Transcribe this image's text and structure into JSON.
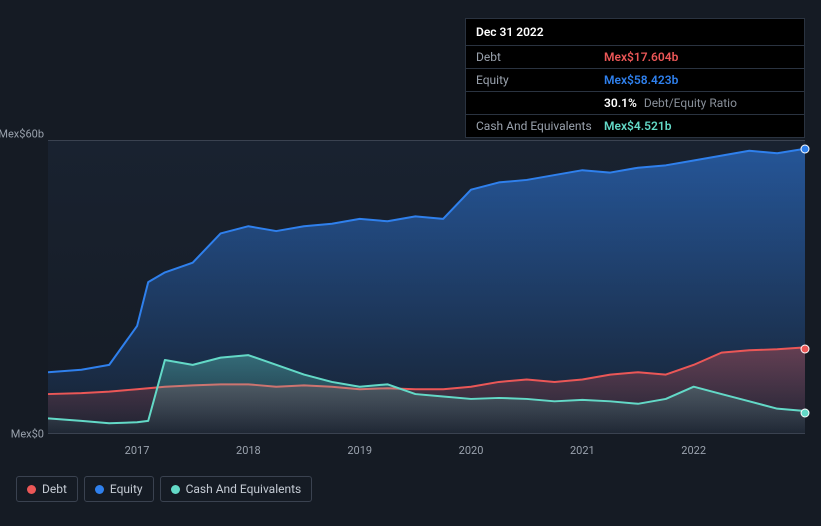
{
  "tooltip": {
    "date": "Dec 31 2022",
    "rows": [
      {
        "label": "Debt",
        "value": "Mex$17.604b",
        "color": "#eb5757"
      },
      {
        "label": "Equity",
        "value": "Mex$58.423b",
        "color": "#2f80ed"
      },
      {
        "label": "",
        "value": "30.1%",
        "sub": "Debt/Equity Ratio",
        "color": "#ffffff"
      },
      {
        "label": "Cash And Equivalents",
        "value": "Mex$4.521b",
        "color": "#63d9c7"
      }
    ]
  },
  "chart": {
    "type": "area",
    "background_top": "#192230",
    "background_bottom": "#151b24",
    "grid_border_color": "#3a4250",
    "y_axis": {
      "max": 60,
      "min": 0,
      "labels": [
        {
          "text": "Mex$60b",
          "value": 60
        },
        {
          "text": "Mex$0",
          "value": 0
        }
      ]
    },
    "x_axis": {
      "min": 2016.2,
      "max": 2023.0,
      "labels": [
        {
          "text": "2017",
          "value": 2017
        },
        {
          "text": "2018",
          "value": 2018
        },
        {
          "text": "2019",
          "value": 2019
        },
        {
          "text": "2020",
          "value": 2020
        },
        {
          "text": "2021",
          "value": 2021
        },
        {
          "text": "2022",
          "value": 2022
        }
      ]
    },
    "series": [
      {
        "name": "Equity",
        "stroke": "#2f80ed",
        "fill_top": "rgba(47,128,237,0.55)",
        "fill_bottom": "rgba(47,128,237,0.05)",
        "stroke_width": 2,
        "points": [
          [
            2016.2,
            12.5
          ],
          [
            2016.5,
            13.0
          ],
          [
            2016.75,
            14.0
          ],
          [
            2017.0,
            22.0
          ],
          [
            2017.1,
            31.0
          ],
          [
            2017.25,
            33.0
          ],
          [
            2017.5,
            35.0
          ],
          [
            2017.75,
            41.0
          ],
          [
            2018.0,
            42.5
          ],
          [
            2018.25,
            41.5
          ],
          [
            2018.5,
            42.5
          ],
          [
            2018.75,
            43.0
          ],
          [
            2019.0,
            44.0
          ],
          [
            2019.25,
            43.5
          ],
          [
            2019.5,
            44.5
          ],
          [
            2019.75,
            44.0
          ],
          [
            2020.0,
            50.0
          ],
          [
            2020.25,
            51.5
          ],
          [
            2020.5,
            52.0
          ],
          [
            2020.75,
            53.0
          ],
          [
            2021.0,
            54.0
          ],
          [
            2021.25,
            53.5
          ],
          [
            2021.5,
            54.5
          ],
          [
            2021.75,
            55.0
          ],
          [
            2022.0,
            56.0
          ],
          [
            2022.25,
            57.0
          ],
          [
            2022.5,
            58.0
          ],
          [
            2022.75,
            57.5
          ],
          [
            2023.0,
            58.4
          ]
        ]
      },
      {
        "name": "Debt",
        "stroke": "#eb5757",
        "fill_top": "rgba(235,87,87,0.35)",
        "fill_bottom": "rgba(235,87,87,0.03)",
        "stroke_width": 2,
        "points": [
          [
            2016.2,
            8.0
          ],
          [
            2016.5,
            8.2
          ],
          [
            2016.75,
            8.5
          ],
          [
            2017.0,
            9.0
          ],
          [
            2017.25,
            9.5
          ],
          [
            2017.5,
            9.8
          ],
          [
            2017.75,
            10.0
          ],
          [
            2018.0,
            10.0
          ],
          [
            2018.25,
            9.5
          ],
          [
            2018.5,
            9.8
          ],
          [
            2018.75,
            9.5
          ],
          [
            2019.0,
            9.0
          ],
          [
            2019.25,
            9.2
          ],
          [
            2019.5,
            9.0
          ],
          [
            2019.75,
            9.0
          ],
          [
            2020.0,
            9.5
          ],
          [
            2020.25,
            10.5
          ],
          [
            2020.5,
            11.0
          ],
          [
            2020.75,
            10.5
          ],
          [
            2021.0,
            11.0
          ],
          [
            2021.25,
            12.0
          ],
          [
            2021.5,
            12.5
          ],
          [
            2021.75,
            12.0
          ],
          [
            2022.0,
            14.0
          ],
          [
            2022.25,
            16.5
          ],
          [
            2022.5,
            17.0
          ],
          [
            2022.75,
            17.2
          ],
          [
            2023.0,
            17.6
          ]
        ]
      },
      {
        "name": "Cash And Equivalents",
        "stroke": "#63d9c7",
        "fill_top": "rgba(99,217,199,0.35)",
        "fill_bottom": "rgba(99,217,199,0.03)",
        "stroke_width": 2,
        "points": [
          [
            2016.2,
            3.0
          ],
          [
            2016.5,
            2.5
          ],
          [
            2016.75,
            2.0
          ],
          [
            2017.0,
            2.2
          ],
          [
            2017.1,
            2.5
          ],
          [
            2017.25,
            15.0
          ],
          [
            2017.5,
            14.0
          ],
          [
            2017.75,
            15.5
          ],
          [
            2018.0,
            16.0
          ],
          [
            2018.25,
            14.0
          ],
          [
            2018.5,
            12.0
          ],
          [
            2018.75,
            10.5
          ],
          [
            2019.0,
            9.5
          ],
          [
            2019.25,
            10.0
          ],
          [
            2019.5,
            8.0
          ],
          [
            2019.75,
            7.5
          ],
          [
            2020.0,
            7.0
          ],
          [
            2020.25,
            7.2
          ],
          [
            2020.5,
            7.0
          ],
          [
            2020.75,
            6.5
          ],
          [
            2021.0,
            6.8
          ],
          [
            2021.25,
            6.5
          ],
          [
            2021.5,
            6.0
          ],
          [
            2021.75,
            7.0
          ],
          [
            2022.0,
            9.5
          ],
          [
            2022.25,
            8.0
          ],
          [
            2022.5,
            6.5
          ],
          [
            2022.75,
            5.0
          ],
          [
            2023.0,
            4.5
          ]
        ]
      }
    ],
    "legend": [
      {
        "label": "Debt",
        "color": "#eb5757"
      },
      {
        "label": "Equity",
        "color": "#2f80ed"
      },
      {
        "label": "Cash And Equivalents",
        "color": "#63d9c7"
      }
    ]
  }
}
